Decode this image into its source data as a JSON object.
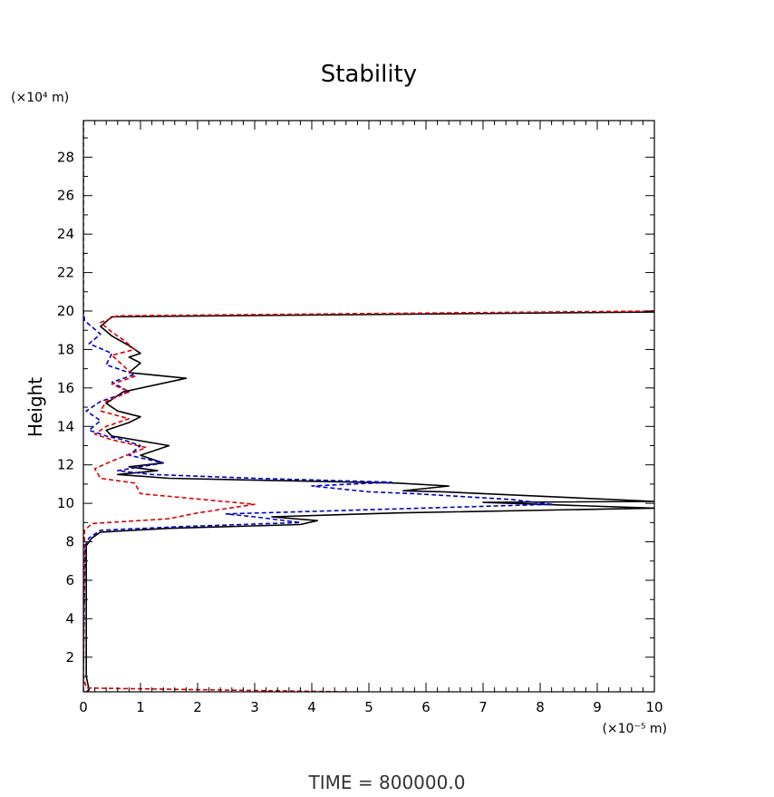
{
  "chart_data": {
    "type": "line",
    "title": "Stability",
    "xlabel": "",
    "ylabel": "Height",
    "y_unit_label": "(×10⁴ m)",
    "x_unit_label": "(×10⁻⁵ m)",
    "xlim": [
      0,
      10
    ],
    "ylim": [
      0.2,
      29.9
    ],
    "x_ticks": [
      0,
      1,
      2,
      3,
      4,
      5,
      6,
      7,
      8,
      9,
      10
    ],
    "y_ticks": [
      2,
      4,
      6,
      8,
      10,
      12,
      14,
      16,
      18,
      20,
      22,
      24,
      26,
      28
    ],
    "grid": false,
    "footer": "TIME  =  800000.0",
    "series": [
      {
        "color": "#000000",
        "style": "solid",
        "points": [
          [
            0.05,
            0.2
          ],
          [
            0.1,
            0.3
          ],
          [
            0.05,
            1
          ],
          [
            0.05,
            7.8
          ],
          [
            0.15,
            8.2
          ],
          [
            0.3,
            8.5
          ],
          [
            1.5,
            8.7
          ],
          [
            3.8,
            8.9
          ],
          [
            4.1,
            9.1
          ],
          [
            3.3,
            9.3
          ],
          [
            5.5,
            9.5
          ],
          [
            10,
            9.75
          ],
          [
            7,
            10.05
          ],
          [
            10,
            10.1
          ],
          [
            6.3,
            10.6
          ],
          [
            5.6,
            10.65
          ],
          [
            6.4,
            10.9
          ],
          [
            5.5,
            11.05
          ],
          [
            1.5,
            11.3
          ],
          [
            0.6,
            11.5
          ],
          [
            1.3,
            11.7
          ],
          [
            0.8,
            11.9
          ],
          [
            1.4,
            12.1
          ],
          [
            1.0,
            12.5
          ],
          [
            1.5,
            13.0
          ],
          [
            0.5,
            13.5
          ],
          [
            0.4,
            13.8
          ],
          [
            0.8,
            14.2
          ],
          [
            1.0,
            14.5
          ],
          [
            0.6,
            14.8
          ],
          [
            0.4,
            15.2
          ],
          [
            0.7,
            15.8
          ],
          [
            1.8,
            16.5
          ],
          [
            0.8,
            16.8
          ],
          [
            1.0,
            17.3
          ],
          [
            0.8,
            17.6
          ],
          [
            1.0,
            17.8
          ],
          [
            0.8,
            18.2
          ],
          [
            0.5,
            18.7
          ],
          [
            0.3,
            19.2
          ],
          [
            0.5,
            19.7
          ],
          [
            10,
            19.95
          ]
        ]
      },
      {
        "color": "#0000cc",
        "style": "dashed",
        "points": [
          [
            0.0,
            29.9
          ],
          [
            0.0,
            20.0
          ],
          [
            0.02,
            19.5
          ],
          [
            0.3,
            18.8
          ],
          [
            0.1,
            18.3
          ],
          [
            0.5,
            17.8
          ],
          [
            0.4,
            17.2
          ],
          [
            0.9,
            16.7
          ],
          [
            0.5,
            16.3
          ],
          [
            0.8,
            15.8
          ],
          [
            0.3,
            15.3
          ],
          [
            0.05,
            14.8
          ],
          [
            0.3,
            14.3
          ],
          [
            0.1,
            13.8
          ],
          [
            0.4,
            13.5
          ],
          [
            0.7,
            13.3
          ],
          [
            1.0,
            13.0
          ],
          [
            0.8,
            12.5
          ],
          [
            1.4,
            12.1
          ],
          [
            0.6,
            11.7
          ],
          [
            1.2,
            11.5
          ],
          [
            3.0,
            11.3
          ],
          [
            5.4,
            11.1
          ],
          [
            4.0,
            10.9
          ],
          [
            5.0,
            10.6
          ],
          [
            5.8,
            10.5
          ],
          [
            7.5,
            10.2
          ],
          [
            8.2,
            9.95
          ],
          [
            2.5,
            9.45
          ],
          [
            3.0,
            9.3
          ],
          [
            3.8,
            9.0
          ],
          [
            1.8,
            8.8
          ],
          [
            0.3,
            8.6
          ],
          [
            0.1,
            8.2
          ],
          [
            0.03,
            7.8
          ],
          [
            0.0,
            1.0
          ],
          [
            0.0,
            0.2
          ]
        ]
      },
      {
        "color": "#dd0000",
        "style": "dashed",
        "points": [
          [
            10,
            20.0
          ],
          [
            0.6,
            19.75
          ],
          [
            0.3,
            19.4
          ],
          [
            0.5,
            18.9
          ],
          [
            0.7,
            18.5
          ],
          [
            0.9,
            18.0
          ],
          [
            0.5,
            17.7
          ],
          [
            0.9,
            16.6
          ],
          [
            0.5,
            16.2
          ],
          [
            0.8,
            15.8
          ],
          [
            0.4,
            15.3
          ],
          [
            0.3,
            14.8
          ],
          [
            0.8,
            14.4
          ],
          [
            0.4,
            14.0
          ],
          [
            0.2,
            13.6
          ],
          [
            0.5,
            13.3
          ],
          [
            1.1,
            12.9
          ],
          [
            0.5,
            12.2
          ],
          [
            0.2,
            11.8
          ],
          [
            0.3,
            11.3
          ],
          [
            0.9,
            11.05
          ],
          [
            1.0,
            10.5
          ],
          [
            3.0,
            9.95
          ],
          [
            2.0,
            9.5
          ],
          [
            1.5,
            9.2
          ],
          [
            0.15,
            8.95
          ],
          [
            0.02,
            8.6
          ],
          [
            0.0,
            1.0
          ],
          [
            0.05,
            0.4
          ],
          [
            4.6,
            0.2
          ]
        ]
      }
    ]
  }
}
